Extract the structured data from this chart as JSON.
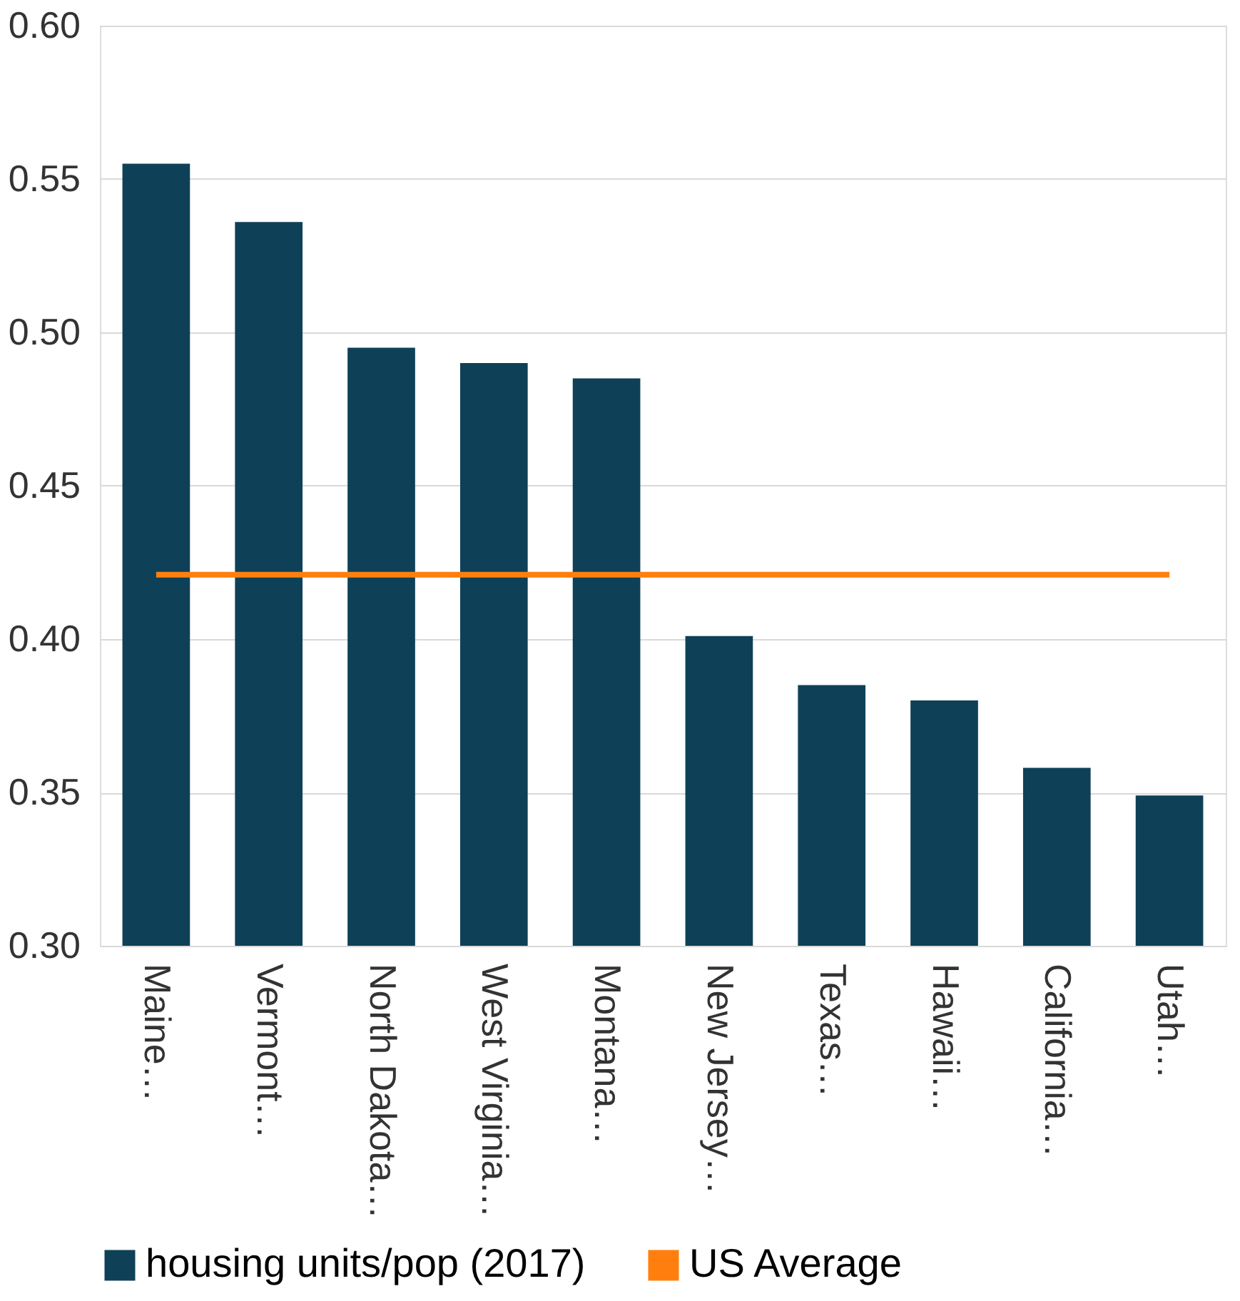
{
  "chart_data": {
    "type": "bar",
    "categories": [
      "Maine…",
      "Vermont…",
      "North Dakota…",
      "West Virginia…",
      "Montana…",
      "New Jersey…",
      "Texas…",
      "Hawaii…",
      "California…",
      "Utah…"
    ],
    "series": [
      {
        "name": "housing units/pop (2017)",
        "color": "#0e4157",
        "values": [
          0.555,
          0.536,
          0.495,
          0.49,
          0.485,
          0.401,
          0.385,
          0.38,
          0.358,
          0.349
        ]
      },
      {
        "name": "US Average",
        "type": "line",
        "color": "#ff7f0e",
        "values": [
          0.421,
          0.421,
          0.421,
          0.421,
          0.421,
          0.421,
          0.421,
          0.421,
          0.421,
          0.421
        ]
      }
    ],
    "ylim": [
      0.3,
      0.6
    ],
    "yticks": [
      {
        "value": 0.3,
        "label": "0.30"
      },
      0.35,
      {
        "value": 0.4,
        "label": "0.40"
      },
      0.45,
      {
        "value": 0.5,
        "label": "0.50"
      },
      0.55,
      {
        "value": 0.6,
        "label": "0.60"
      }
    ],
    "grid": "y",
    "legend": "bottom"
  }
}
